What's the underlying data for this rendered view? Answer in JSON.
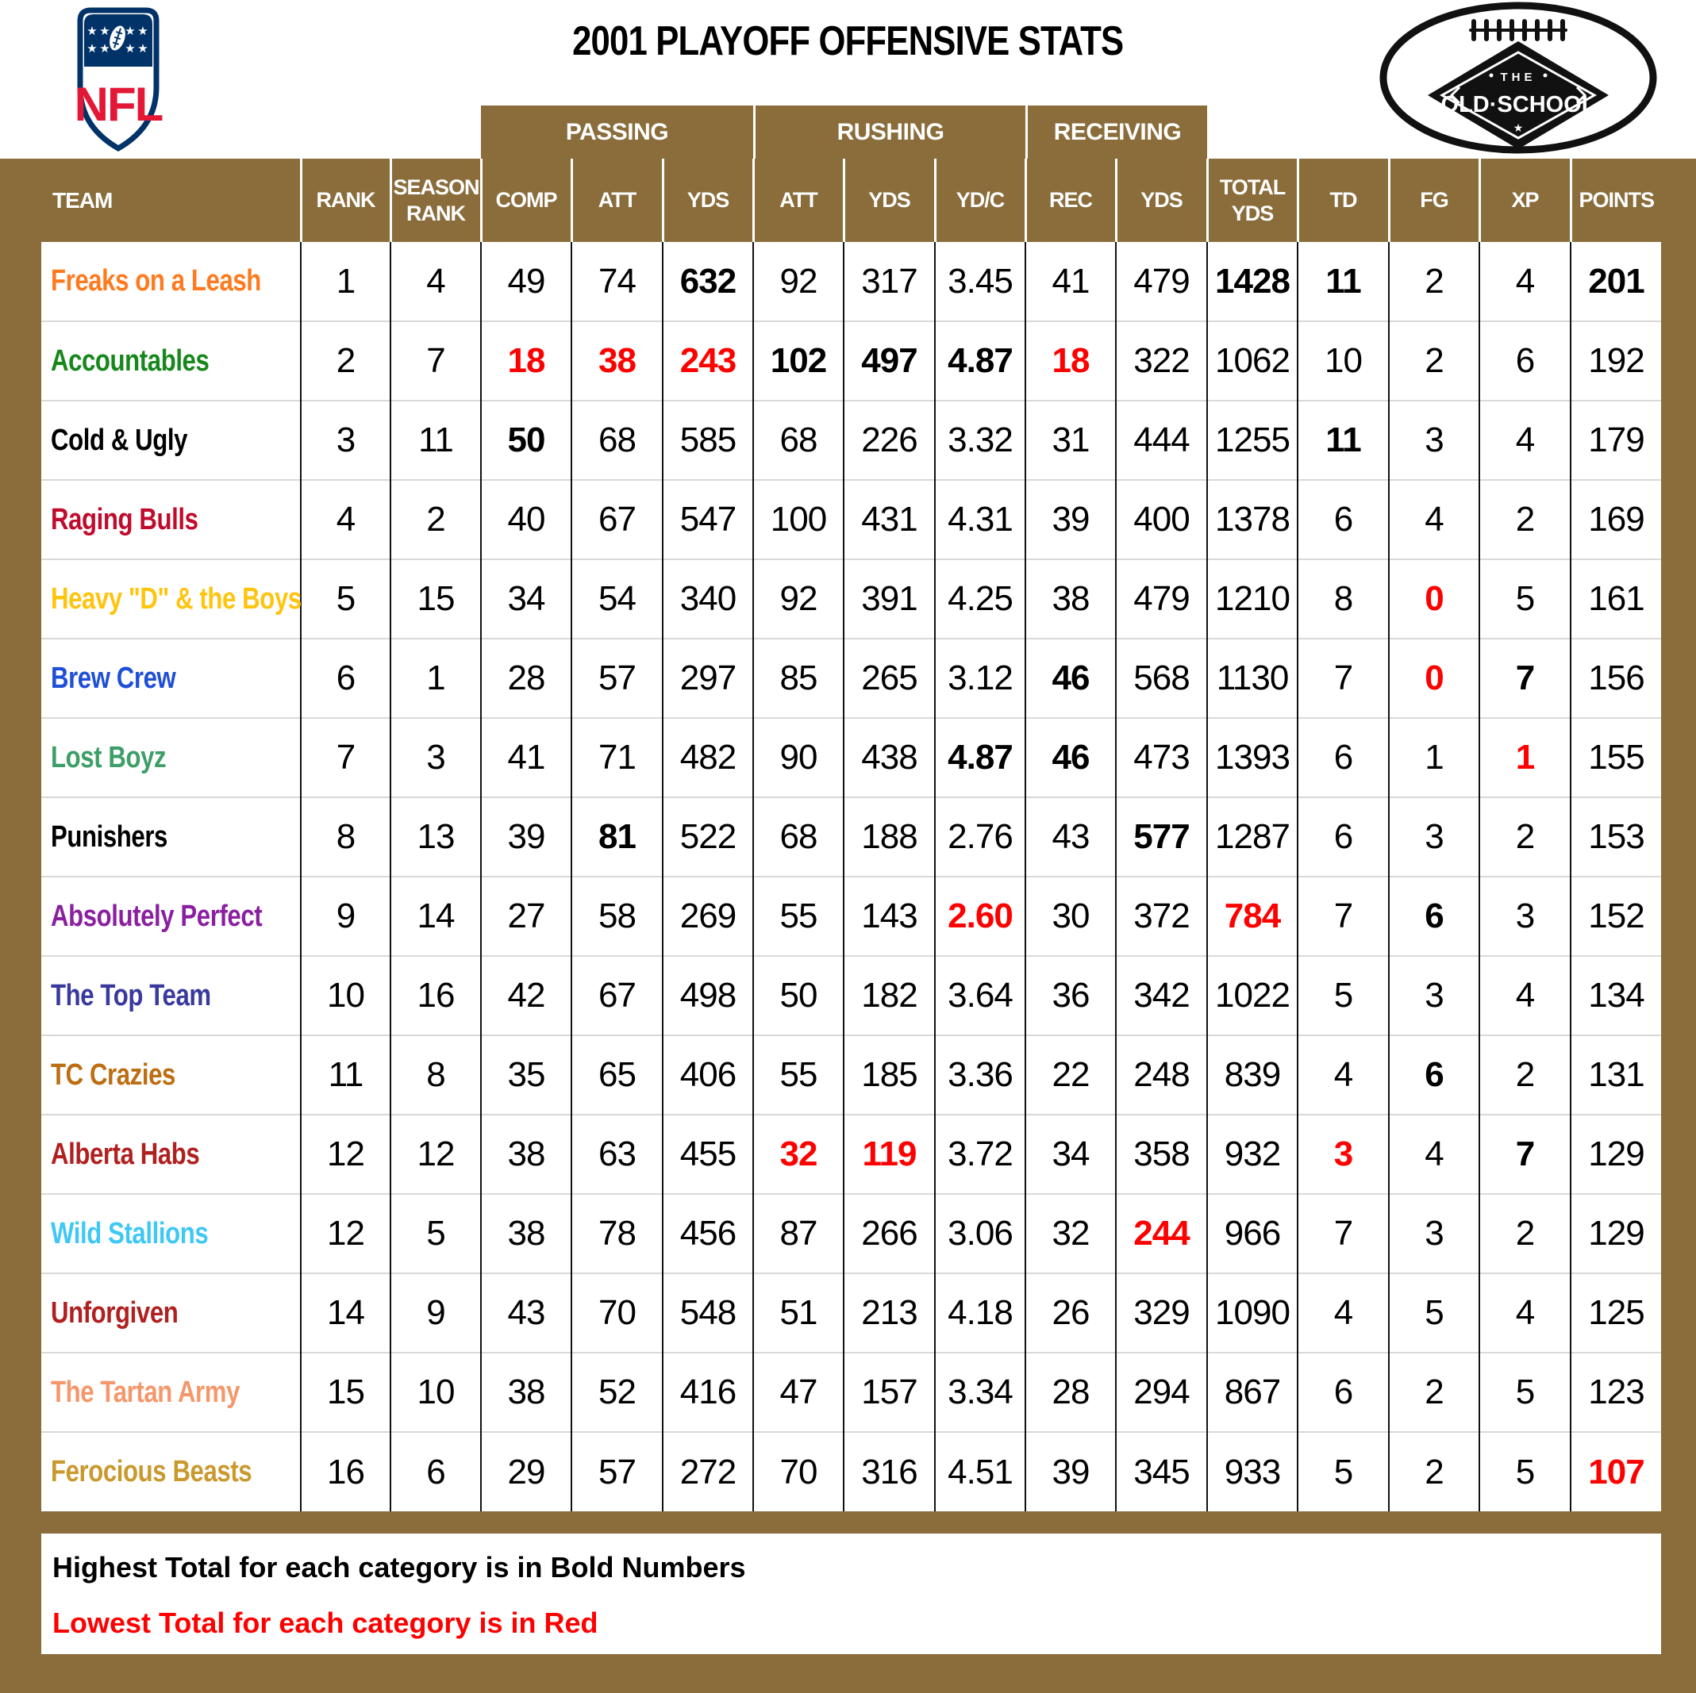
{
  "page": {
    "title": "2001 PLAYOFF OFFENSIVE STATS",
    "nfl_logo": "NFL",
    "old_school": {
      "top_word": "THE",
      "name": "OLD·SCHOOL"
    }
  },
  "colors": {
    "header_brown": "#8a6d3b",
    "highlight_red": "#fe0000",
    "nfl_navy": "#013369",
    "nfl_red": "#e31837"
  },
  "table": {
    "groups": [
      {
        "label": "PASSING"
      },
      {
        "label": "RUSHING"
      },
      {
        "label": "RECEIVING"
      }
    ],
    "columns": [
      "TEAM",
      "RANK",
      "SEASON RANK",
      "COMP",
      "ATT",
      "YDS",
      "ATT",
      "YDS",
      "YD/C",
      "REC",
      "YDS",
      "TOTAL YDS",
      "TD",
      "FG",
      "XP",
      "POINTS"
    ],
    "legend": "Highest total bold, lowest total red",
    "rows": [
      {
        "team": "Freaks on a Leash",
        "color": "#ff7a1e",
        "values": [
          "1",
          "4",
          "49",
          "74",
          "632",
          "92",
          "317",
          "3.45",
          "41",
          "479",
          "1428",
          "11",
          "2",
          "4",
          "201"
        ],
        "bold": [
          4,
          10,
          11,
          14
        ],
        "red": []
      },
      {
        "team": "Accountables",
        "color": "#17871b",
        "values": [
          "2",
          "7",
          "18",
          "38",
          "243",
          "102",
          "497",
          "4.87",
          "18",
          "322",
          "1062",
          "10",
          "2",
          "6",
          "192"
        ],
        "bold": [
          5,
          6,
          7
        ],
        "red": [
          2,
          3,
          4,
          8
        ]
      },
      {
        "team": "Cold & Ugly",
        "color": "#000000",
        "values": [
          "3",
          "11",
          "50",
          "68",
          "585",
          "68",
          "226",
          "3.32",
          "31",
          "444",
          "1255",
          "11",
          "3",
          "4",
          "179"
        ],
        "bold": [
          2,
          11
        ],
        "red": []
      },
      {
        "team": "Raging Bulls",
        "color": "#c00b2c",
        "values": [
          "4",
          "2",
          "40",
          "67",
          "547",
          "100",
          "431",
          "4.31",
          "39",
          "400",
          "1378",
          "6",
          "4",
          "2",
          "169"
        ],
        "bold": [],
        "red": []
      },
      {
        "team": "Heavy \"D\" & the Boys",
        "color": "#ffc40e",
        "values": [
          "5",
          "15",
          "34",
          "54",
          "340",
          "92",
          "391",
          "4.25",
          "38",
          "479",
          "1210",
          "8",
          "0",
          "5",
          "161"
        ],
        "bold": [],
        "red": [
          12
        ]
      },
      {
        "team": "Brew Crew",
        "color": "#1f4fd6",
        "values": [
          "6",
          "1",
          "28",
          "57",
          "297",
          "85",
          "265",
          "3.12",
          "46",
          "568",
          "1130",
          "7",
          "0",
          "7",
          "156"
        ],
        "bold": [
          8,
          13
        ],
        "red": [
          12
        ]
      },
      {
        "team": "Lost Boyz",
        "color": "#3d9e68",
        "values": [
          "7",
          "3",
          "41",
          "71",
          "482",
          "90",
          "438",
          "4.87",
          "46",
          "473",
          "1393",
          "6",
          "1",
          "1",
          "155"
        ],
        "bold": [
          7,
          8
        ],
        "red": [
          13
        ]
      },
      {
        "team": "Punishers",
        "color": "#000000",
        "values": [
          "8",
          "13",
          "39",
          "81",
          "522",
          "68",
          "188",
          "2.76",
          "43",
          "577",
          "1287",
          "6",
          "3",
          "2",
          "153"
        ],
        "bold": [
          3,
          9
        ],
        "red": []
      },
      {
        "team": "Absolutely Perfect",
        "color": "#8a1fa0",
        "values": [
          "9",
          "14",
          "27",
          "58",
          "269",
          "55",
          "143",
          "2.60",
          "30",
          "372",
          "784",
          "7",
          "6",
          "3",
          "152"
        ],
        "bold": [
          12
        ],
        "red": [
          7,
          10
        ]
      },
      {
        "team": "The Top Team",
        "color": "#39399e",
        "values": [
          "10",
          "16",
          "42",
          "67",
          "498",
          "50",
          "182",
          "3.64",
          "36",
          "342",
          "1022",
          "5",
          "3",
          "4",
          "134"
        ],
        "bold": [],
        "red": []
      },
      {
        "team": "TC Crazies",
        "color": "#bd6d12",
        "values": [
          "11",
          "8",
          "35",
          "65",
          "406",
          "55",
          "185",
          "3.36",
          "22",
          "248",
          "839",
          "4",
          "6",
          "2",
          "131"
        ],
        "bold": [
          12
        ],
        "red": []
      },
      {
        "team": "Alberta Habs",
        "color": "#b02020",
        "values": [
          "12",
          "12",
          "38",
          "63",
          "455",
          "32",
          "119",
          "3.72",
          "34",
          "358",
          "932",
          "3",
          "4",
          "7",
          "129"
        ],
        "bold": [
          13
        ],
        "red": [
          5,
          6,
          11
        ]
      },
      {
        "team": "Wild Stallions",
        "color": "#3fc8f5",
        "values": [
          "12",
          "5",
          "38",
          "78",
          "456",
          "87",
          "266",
          "3.06",
          "32",
          "244",
          "966",
          "7",
          "3",
          "2",
          "129"
        ],
        "bold": [],
        "red": [
          9
        ]
      },
      {
        "team": "Unforgiven",
        "color": "#b02020",
        "values": [
          "14",
          "9",
          "43",
          "70",
          "548",
          "51",
          "213",
          "4.18",
          "26",
          "329",
          "1090",
          "4",
          "5",
          "4",
          "125"
        ],
        "bold": [],
        "red": []
      },
      {
        "team": "The Tartan Army",
        "color": "#f5976b",
        "values": [
          "15",
          "10",
          "38",
          "52",
          "416",
          "47",
          "157",
          "3.34",
          "28",
          "294",
          "867",
          "6",
          "2",
          "5",
          "123"
        ],
        "bold": [],
        "red": []
      },
      {
        "team": "Ferocious Beasts",
        "color": "#c9992e",
        "values": [
          "16",
          "6",
          "29",
          "57",
          "272",
          "70",
          "316",
          "4.51",
          "39",
          "345",
          "933",
          "5",
          "2",
          "5",
          "107"
        ],
        "bold": [],
        "red": [
          14
        ]
      }
    ]
  },
  "footer": {
    "note_bold": "Highest Total for each category is in Bold Numbers",
    "note_red": "Lowest Total for each category is in Red"
  }
}
